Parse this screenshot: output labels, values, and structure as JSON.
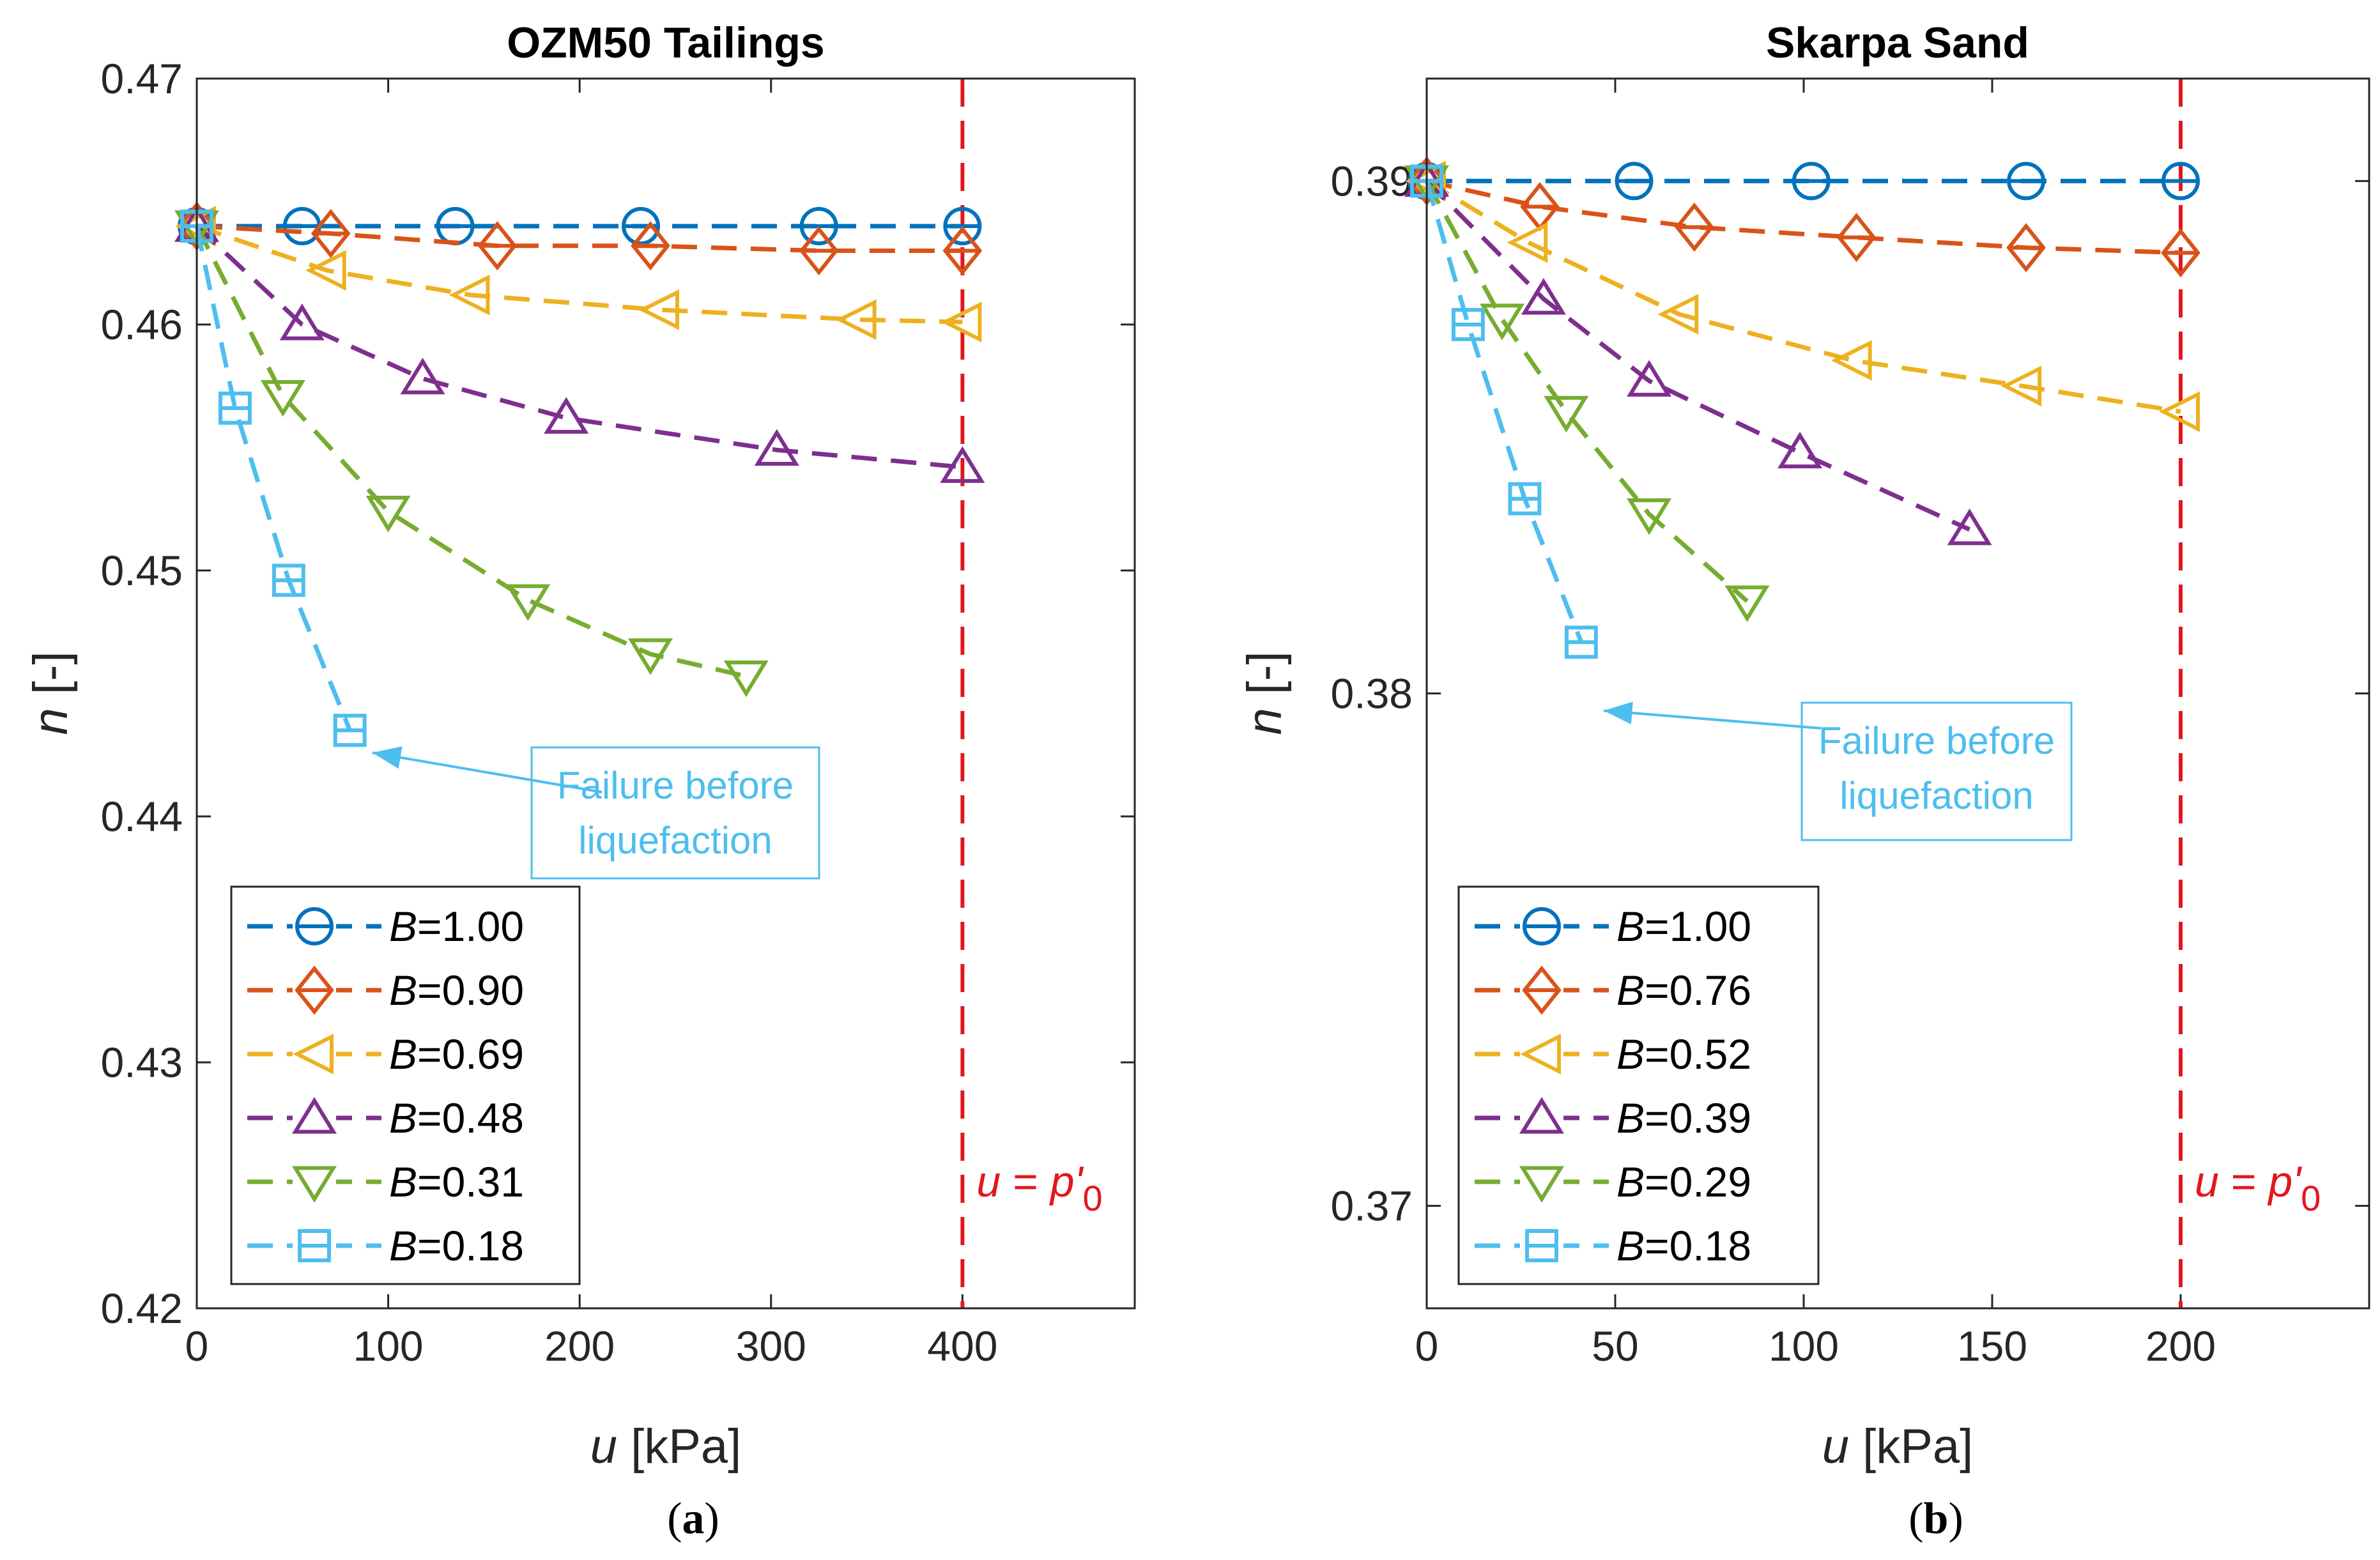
{
  "chart_data": [
    {
      "type": "line",
      "title": "OZM50 Tailings",
      "subcaption": "a",
      "xlabel_var": "u",
      "xlabel_unit": " [kPa]",
      "ylabel_var": "n",
      "ylabel_unit": " [-]",
      "xlim": [
        0,
        490
      ],
      "ylim": [
        0.42,
        0.47
      ],
      "xticks": [
        0,
        100,
        200,
        300,
        400
      ],
      "yticks": [
        0.42,
        0.43,
        0.44,
        0.45,
        0.46,
        0.47
      ],
      "xtick_labels": [
        "0",
        "100",
        "200",
        "300",
        "400"
      ],
      "ytick_labels": [
        "0.42",
        "0.43",
        "0.44",
        "0.45",
        "0.46",
        "0.47"
      ],
      "reference_line": {
        "x": 400,
        "label_var": "u",
        "label_eq": " = ",
        "label_rhs": "p'",
        "label_sub": "0",
        "color": "#e3161d"
      },
      "annotation": {
        "lines": [
          "Failure before",
          "liquefaction"
        ],
        "color": "#4dbeee",
        "points_to": [
          80,
          0.4435
        ]
      },
      "series": [
        {
          "name": "B=1.00",
          "label_var": "B",
          "label_val": "=1.00",
          "color": "#0072bd",
          "marker": "circle-bar",
          "x": [
            0,
            55,
            135,
            232,
            325,
            400
          ],
          "y": [
            0.464,
            0.464,
            0.464,
            0.464,
            0.464,
            0.464
          ]
        },
        {
          "name": "B=0.90",
          "label_var": "B",
          "label_val": "=0.90",
          "color": "#d95319",
          "marker": "diamond-bar",
          "x": [
            0,
            70,
            157,
            237,
            325,
            400
          ],
          "y": [
            0.464,
            0.4637,
            0.4632,
            0.4632,
            0.463,
            0.463
          ]
        },
        {
          "name": "B=0.69",
          "label_var": "B",
          "label_val": "=0.69",
          "color": "#edb120",
          "marker": "triangle-left",
          "x": [
            0,
            68,
            143,
            242,
            345,
            400
          ],
          "y": [
            0.464,
            0.4622,
            0.4612,
            0.4606,
            0.4602,
            0.4601
          ]
        },
        {
          "name": "B=0.48",
          "label_var": "B",
          "label_val": "=0.48",
          "color": "#7e2f8e",
          "marker": "triangle-up",
          "x": [
            0,
            55,
            118,
            193,
            303,
            400
          ],
          "y": [
            0.464,
            0.46,
            0.4578,
            0.4562,
            0.4549,
            0.4542
          ]
        },
        {
          "name": "B=0.31",
          "label_var": "B",
          "label_val": "=0.31",
          "color": "#77ac30",
          "marker": "triangle-down",
          "x": [
            0,
            45,
            100,
            173,
            237,
            287
          ],
          "y": [
            0.464,
            0.4571,
            0.4524,
            0.4488,
            0.4466,
            0.4457
          ]
        },
        {
          "name": "B=0.18",
          "label_var": "B",
          "label_val": "=0.18",
          "color": "#4dbeee",
          "marker": "square-bar",
          "x": [
            0,
            20,
            48,
            80
          ],
          "y": [
            0.464,
            0.4566,
            0.4496,
            0.4435
          ]
        }
      ]
    },
    {
      "type": "line",
      "title": "Skarpa Sand",
      "subcaption": "b",
      "xlabel_var": "u",
      "xlabel_unit": " [kPa]",
      "ylabel_var": "n",
      "ylabel_unit": " [-]",
      "xlim": [
        0,
        250
      ],
      "ylim": [
        0.368,
        0.392
      ],
      "xticks": [
        0,
        50,
        100,
        150,
        200
      ],
      "yticks": [
        0.37,
        0.38,
        0.39
      ],
      "xtick_labels": [
        "0",
        "50",
        "100",
        "150",
        "200"
      ],
      "ytick_labels": [
        "0.37",
        "0.38",
        "0.39"
      ],
      "reference_line": {
        "x": 200,
        "label_var": "u",
        "label_eq": " = ",
        "label_rhs": "p'",
        "label_sub": "0",
        "color": "#e3161d"
      },
      "annotation": {
        "lines": [
          "Failure before",
          "liquefaction"
        ],
        "color": "#4dbeee",
        "points_to": [
          41,
          0.3801
        ]
      },
      "series": [
        {
          "name": "B=1.00",
          "label_var": "B",
          "label_val": "=1.00",
          "color": "#0072bd",
          "marker": "circle-bar",
          "x": [
            0,
            55,
            102,
            159,
            200
          ],
          "y": [
            0.39,
            0.39,
            0.39,
            0.39,
            0.39
          ]
        },
        {
          "name": "B=0.76",
          "label_var": "B",
          "label_val": "=0.76",
          "color": "#d95319",
          "marker": "diamond-bar",
          "x": [
            0,
            30,
            71,
            114,
            159,
            200
          ],
          "y": [
            0.39,
            0.3895,
            0.3891,
            0.3889,
            0.3887,
            0.3886
          ]
        },
        {
          "name": "B=0.52",
          "label_var": "B",
          "label_val": "=0.52",
          "color": "#edb120",
          "marker": "triangle-left",
          "x": [
            0,
            27,
            67,
            113,
            158,
            200
          ],
          "y": [
            0.39,
            0.3888,
            0.3874,
            0.3865,
            0.386,
            0.3855
          ]
        },
        {
          "name": "B=0.39",
          "label_var": "B",
          "label_val": "=0.39",
          "color": "#7e2f8e",
          "marker": "triangle-up",
          "x": [
            0,
            31,
            59,
            99,
            144
          ],
          "y": [
            0.39,
            0.3877,
            0.3861,
            0.3847,
            0.3832
          ]
        },
        {
          "name": "B=0.29",
          "label_var": "B",
          "label_val": "=0.29",
          "color": "#77ac30",
          "marker": "triangle-down",
          "x": [
            0,
            20,
            37,
            59,
            85
          ],
          "y": [
            0.39,
            0.3873,
            0.3855,
            0.3835,
            0.3818
          ]
        },
        {
          "name": "B=0.18",
          "label_var": "B",
          "label_val": "=0.18",
          "color": "#4dbeee",
          "marker": "square-bar",
          "x": [
            0,
            11,
            26,
            41
          ],
          "y": [
            0.39,
            0.3872,
            0.3838,
            0.381
          ]
        }
      ]
    }
  ]
}
